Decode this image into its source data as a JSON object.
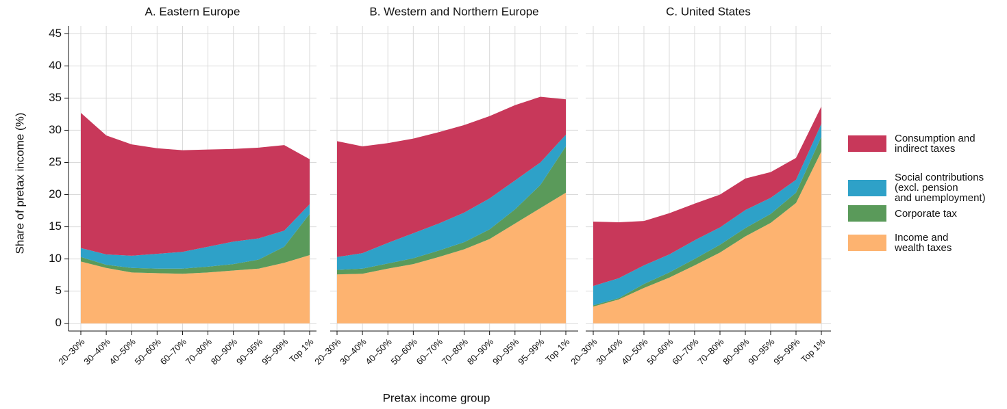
{
  "xlabel": "Pretax income group",
  "ylabel": "Share of pretax income (%)",
  "legend": [
    {
      "name": "Consumption and\nindirect taxes",
      "color": "#c8385a"
    },
    {
      "name": "Social contributions\n(excl. pension\nand unemployment)",
      "color": "#2ea1c8"
    },
    {
      "name": "Corporate tax",
      "color": "#5a9a5a"
    },
    {
      "name": "Income and\nwealth taxes",
      "color": "#fdb370"
    }
  ],
  "chart_data": [
    {
      "type": "stacked_area",
      "title": "A. Eastern Europe",
      "categories": [
        "20–30%",
        "30–40%",
        "40–50%",
        "50–60%",
        "60–70%",
        "70–80%",
        "80–90%",
        "90–95%",
        "95–99%",
        "Top 1%"
      ],
      "series": [
        {
          "values": [
            21.0,
            18.5,
            17.3,
            16.4,
            15.8,
            15.1,
            14.4,
            14.1,
            13.3,
            7.0
          ]
        },
        {
          "values": [
            1.4,
            1.6,
            1.9,
            2.3,
            2.6,
            3.1,
            3.5,
            3.3,
            2.5,
            1.5
          ]
        },
        {
          "values": [
            0.7,
            0.5,
            0.7,
            0.7,
            0.8,
            0.9,
            1.0,
            1.4,
            2.5,
            6.4
          ]
        },
        {
          "values": [
            9.6,
            8.6,
            7.9,
            7.8,
            7.7,
            7.9,
            8.2,
            8.5,
            9.4,
            10.6
          ]
        }
      ],
      "ylim": [
        -1.2,
        46.2
      ],
      "yticks": [
        0,
        5,
        10,
        15,
        20,
        25,
        30,
        35,
        40,
        45
      ],
      "grid": true
    },
    {
      "type": "stacked_area",
      "title": "B. Western and Northern Europe",
      "categories": [
        "20–30%",
        "30–40%",
        "40–50%",
        "50–60%",
        "60–70%",
        "70–80%",
        "80–90%",
        "90–95%",
        "95–99%",
        "Top 1%"
      ],
      "series": [
        {
          "values": [
            18.0,
            16.6,
            15.5,
            14.7,
            14.2,
            13.6,
            12.8,
            11.7,
            10.2,
            5.5
          ]
        },
        {
          "values": [
            2.0,
            2.4,
            3.2,
            3.9,
            4.2,
            4.6,
            4.8,
            4.5,
            3.5,
            1.8
          ]
        },
        {
          "values": [
            0.7,
            0.8,
            0.8,
            0.9,
            1.0,
            1.1,
            1.5,
            2.2,
            3.6,
            7.2
          ]
        },
        {
          "values": [
            7.6,
            7.7,
            8.5,
            9.2,
            10.3,
            11.5,
            13.1,
            15.5,
            17.9,
            20.3
          ]
        }
      ],
      "ylim": [
        -1.2,
        46.2
      ],
      "yticks": [
        0,
        5,
        10,
        15,
        20,
        25,
        30,
        35,
        40,
        45
      ],
      "grid": true
    },
    {
      "type": "stacked_area",
      "title": "C. United States",
      "categories": [
        "20–30%",
        "30–40%",
        "40–50%",
        "50–60%",
        "60–70%",
        "70–80%",
        "80–90%",
        "90–95%",
        "95–99%",
        "Top 1%"
      ],
      "series": [
        {
          "values": [
            10.0,
            8.7,
            6.9,
            6.4,
            5.7,
            5.1,
            4.9,
            4.0,
            3.4,
            2.7
          ]
        },
        {
          "values": [
            3.0,
            3.1,
            2.9,
            2.8,
            2.9,
            2.7,
            2.8,
            2.5,
            2.0,
            2.0
          ]
        },
        {
          "values": [
            0.2,
            0.2,
            0.6,
            0.8,
            1.0,
            1.2,
            1.3,
            1.4,
            1.6,
            2.3
          ]
        },
        {
          "values": [
            2.6,
            3.7,
            5.5,
            7.1,
            9.0,
            11.0,
            13.5,
            15.6,
            18.7,
            26.7
          ]
        }
      ],
      "ylim": [
        -1.2,
        46.2
      ],
      "yticks": [
        0,
        5,
        10,
        15,
        20,
        25,
        30,
        35,
        40,
        45
      ],
      "grid": true
    }
  ]
}
